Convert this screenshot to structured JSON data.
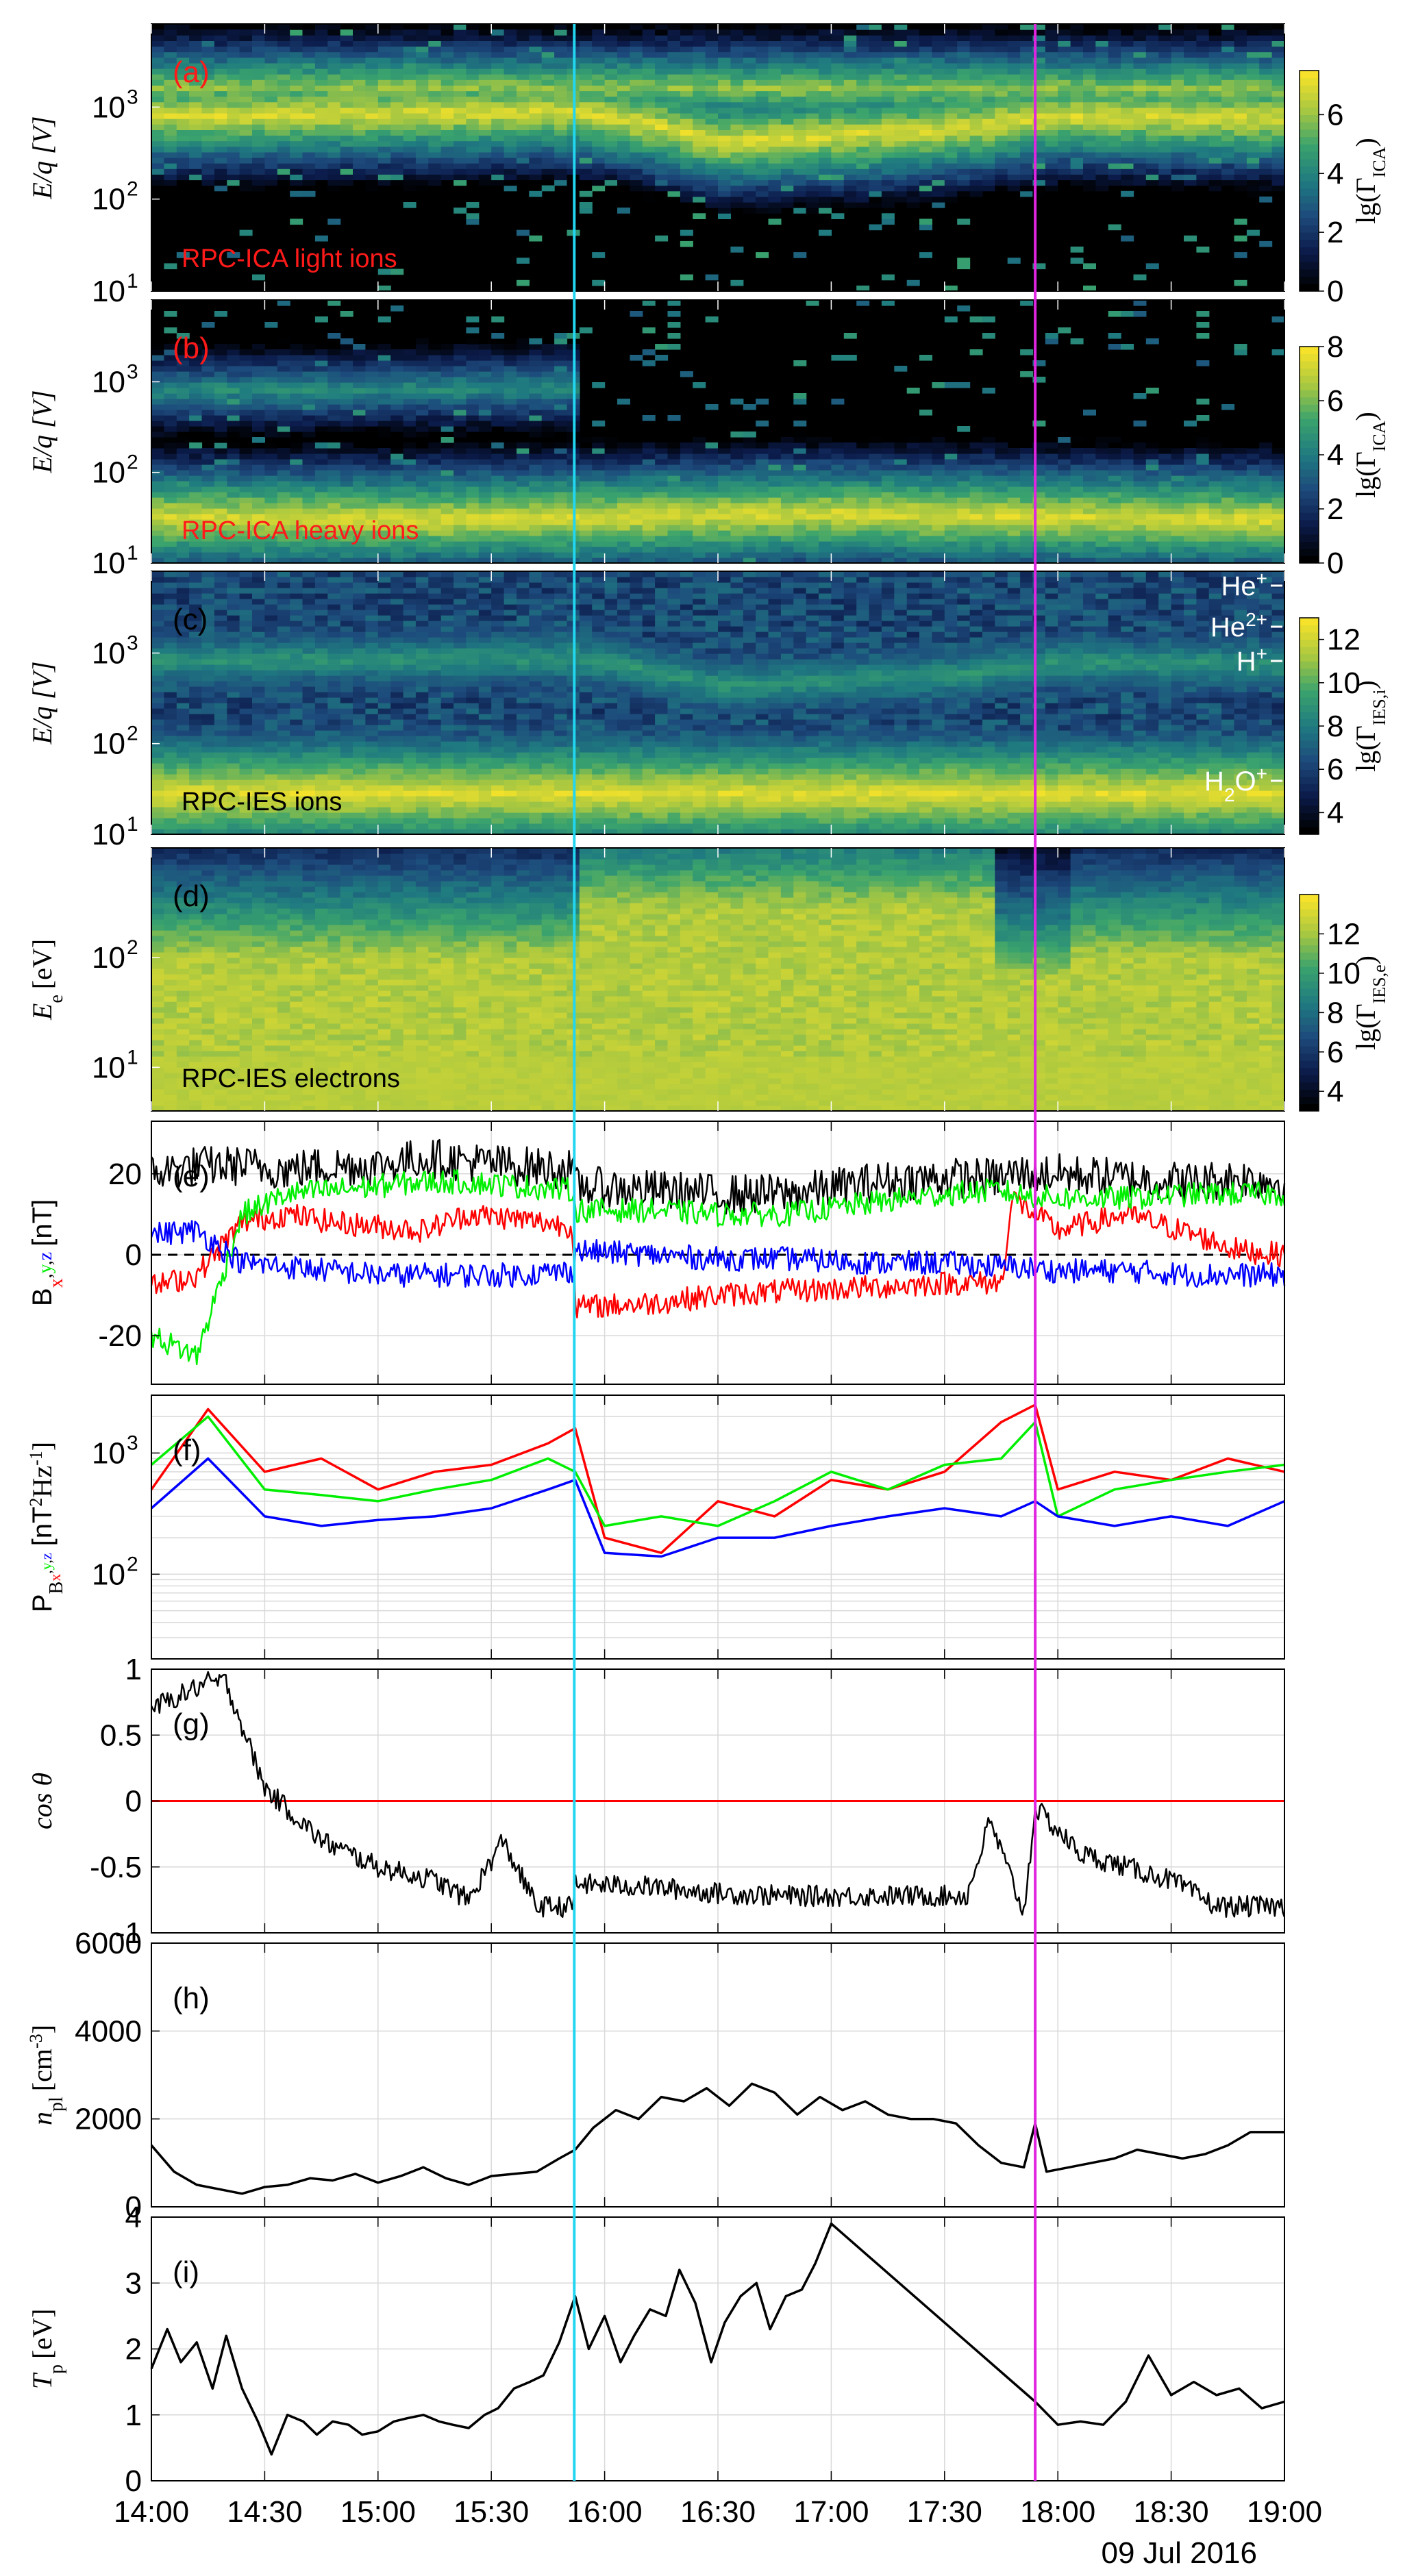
{
  "figure": {
    "date": "09 Jul 2016",
    "time_ticks": [
      "14:00",
      "14:30",
      "15:00",
      "15:30",
      "16:00",
      "16:30",
      "17:00",
      "17:30",
      "18:00",
      "18:30",
      "19:00"
    ],
    "time_range": [
      14.0,
      19.0
    ],
    "markers": [
      {
        "name": "cyan-marker",
        "time": 15.866,
        "color": "#22d6f0"
      },
      {
        "name": "magenta-marker",
        "time": 17.9,
        "color": "#e024e0"
      }
    ]
  },
  "colors": {
    "bx": "#ff0000",
    "by": "#00ee00",
    "bz": "#0000ff",
    "btot": "#000000",
    "zero_line": "#ff0000",
    "cmap": [
      "#000000",
      "#0b1b4a",
      "#1d4a7c",
      "#1f7b80",
      "#3aa36d",
      "#a9c840",
      "#f6e22a"
    ]
  },
  "chart_data": [
    {
      "type": "heatmap",
      "panel": "a",
      "letter": "(a)",
      "label": "RPC-ICA light ions",
      "ylabel": "E/q [V]",
      "yscale": "log",
      "ylim": [
        10,
        8000
      ],
      "y_ticks": [
        "10",
        "10",
        "10"
      ],
      "y_tick_exp": [
        "1",
        "2",
        "3"
      ],
      "colorbar": {
        "label": "lg(Γ",
        "sub": "ICA",
        "close": ")",
        "ticks": [
          "0",
          "2",
          "4",
          "6"
        ],
        "range": [
          0,
          7.5
        ]
      },
      "bands": [
        {
          "t": [
            14.0,
            15.87,
            16.5,
            17.5,
            18.0,
            19.0
          ],
          "e": [
            800,
            900,
            420,
            560,
            800,
            750
          ],
          "level": 7
        },
        {
          "t": [
            14.0,
            15.87,
            17.5,
            18.0,
            19.0
          ],
          "e": [
            1650,
            1650,
            1600,
            1600,
            1550
          ],
          "level": 6
        }
      ]
    },
    {
      "type": "heatmap",
      "panel": "b",
      "letter": "(b)",
      "label": "RPC-ICA heavy ions",
      "ylabel": "E/q [V]",
      "yscale": "log",
      "ylim": [
        10,
        8000
      ],
      "y_ticks": [
        "10",
        "10",
        "10"
      ],
      "y_tick_exp": [
        "1",
        "2",
        "3"
      ],
      "colorbar": {
        "label": "lg(Γ",
        "sub": "ICA",
        "close": ")",
        "ticks": [
          "0",
          "2",
          "4",
          "6",
          "8"
        ],
        "range": [
          0,
          8
        ]
      },
      "bands": [
        {
          "t": [
            14.0,
            15.0,
            16.0,
            17.0,
            18.0,
            19.0
          ],
          "e": [
            32,
            30,
            32,
            35,
            32,
            30
          ],
          "level": 7.5
        },
        {
          "t": [
            14.0,
            15.87
          ],
          "e": [
            780,
            880
          ],
          "level": 4.5
        }
      ]
    },
    {
      "type": "heatmap",
      "panel": "c",
      "letter": "(c)",
      "label": "RPC-IES ions",
      "ylabel": "E/q [V]",
      "yscale": "log",
      "ylim": [
        10,
        8000
      ],
      "y_ticks": [
        "10",
        "10",
        "10"
      ],
      "y_tick_exp": [
        "1",
        "2",
        "3"
      ],
      "colorbar": {
        "label": "lg(Γ",
        "sub": "IES,i",
        "close": ")",
        "ticks": [
          "4",
          "6",
          "8",
          "10",
          "12"
        ],
        "range": [
          3,
          13
        ]
      },
      "species": [
        {
          "base": "He",
          "sup": "+"
        },
        {
          "base": "He",
          "sup": "2+"
        },
        {
          "base": "H",
          "sup": "+"
        },
        {
          "base": "H",
          "sub": "2",
          "tail": "O",
          "sup": "+"
        }
      ],
      "bands": [
        {
          "t": [
            14.0,
            15.87,
            16.5,
            17.5,
            18.0,
            19.0
          ],
          "e": [
            820,
            880,
            430,
            560,
            800,
            760
          ],
          "level": 9
        },
        {
          "t": [
            14.0,
            19.0
          ],
          "e": [
            28,
            28
          ],
          "level": 12.5
        }
      ]
    },
    {
      "type": "heatmap",
      "panel": "d",
      "letter": "(d)",
      "label": "RPC-IES electrons",
      "ylabel": "E",
      "ylabel_sub": "e",
      "ylabel_unit": "[eV]",
      "yscale": "log",
      "ylim": [
        4,
        1000
      ],
      "y_ticks": [
        "10",
        "10"
      ],
      "y_tick_exp": [
        "1",
        "2"
      ],
      "colorbar": {
        "label": "lg(Γ",
        "sub": "IES,e",
        "close": ")",
        "ticks": [
          "4",
          "6",
          "8",
          "10",
          "12"
        ],
        "range": [
          3,
          14
        ]
      }
    },
    {
      "type": "line",
      "panel": "e",
      "letter": "(e)",
      "ylabel": "B",
      "ylabel_sub": "x,y,z",
      "ylabel_unit": "[nT]",
      "ylim": [
        -32,
        33
      ],
      "y_ticks": [
        "20",
        "0",
        "-20"
      ],
      "x": [
        14.0,
        14.2,
        14.4,
        14.6,
        14.8,
        15.0,
        15.2,
        15.4,
        15.6,
        15.86,
        15.87,
        16.2,
        16.5,
        16.8,
        17.2,
        17.5,
        17.75,
        17.8,
        18.0,
        18.3,
        18.6,
        18.8,
        19.0
      ],
      "series": [
        {
          "name": "|B|",
          "color": "#000000",
          "values": [
            20,
            22,
            22,
            21,
            22,
            22,
            24,
            23,
            22,
            21,
            17,
            16,
            15,
            15,
            18,
            19,
            19,
            20,
            20,
            19,
            18,
            19,
            18
          ]
        },
        {
          "name": "Bx",
          "color": "#ff0000",
          "values": [
            -8,
            -5,
            8,
            10,
            8,
            7,
            6,
            10,
            9,
            7,
            -13,
            -12,
            -10,
            -9,
            -8,
            -7,
            -7,
            14,
            6,
            10,
            5,
            1,
            0
          ]
        },
        {
          "name": "By",
          "color": "#00ee00",
          "values": [
            -20,
            -25,
            10,
            15,
            16,
            17,
            18,
            18,
            17,
            16,
            11,
            11,
            10,
            10,
            13,
            15,
            16,
            15,
            14,
            14,
            15,
            15,
            15
          ]
        },
        {
          "name": "Bz",
          "color": "#0000ff",
          "values": [
            5,
            6,
            -2,
            -3,
            -4,
            -5,
            -5,
            -5,
            -5,
            -4,
            1,
            0,
            -1,
            -1,
            -2,
            -2,
            -3,
            -3,
            -4,
            -4,
            -5,
            -5,
            -5
          ]
        }
      ]
    },
    {
      "type": "line",
      "panel": "f",
      "letter": "(f)",
      "ylabel": "P",
      "ylabel_sub": "B",
      "ylabel_subsub": "x,y,z",
      "ylabel_unit": "[nT",
      "ylabel_unit2": "Hz",
      "ylabel_close": "]",
      "yscale": "log",
      "ylim": [
        20,
        3000
      ],
      "y_ticks": [
        "10",
        "10"
      ],
      "y_tick_exp": [
        "2",
        "3"
      ],
      "x": [
        14.0,
        14.25,
        14.5,
        14.75,
        15.0,
        15.25,
        15.5,
        15.75,
        15.87,
        16.0,
        16.25,
        16.5,
        16.75,
        17.0,
        17.25,
        17.5,
        17.75,
        17.9,
        18.0,
        18.25,
        18.5,
        18.75,
        19.0
      ],
      "series": [
        {
          "name": "Bx",
          "color": "#ff0000",
          "values": [
            500,
            2300,
            700,
            900,
            500,
            700,
            800,
            1200,
            1600,
            200,
            150,
            400,
            300,
            600,
            500,
            700,
            1800,
            2500,
            500,
            700,
            600,
            900,
            700
          ]
        },
        {
          "name": "By",
          "color": "#00ee00",
          "values": [
            800,
            2000,
            500,
            450,
            400,
            500,
            600,
            900,
            700,
            250,
            300,
            250,
            400,
            700,
            500,
            800,
            900,
            1800,
            300,
            500,
            600,
            700,
            800
          ]
        },
        {
          "name": "Bz",
          "color": "#0000ff",
          "values": [
            350,
            900,
            300,
            250,
            280,
            300,
            350,
            500,
            600,
            150,
            140,
            200,
            200,
            250,
            300,
            350,
            300,
            400,
            300,
            250,
            300,
            250,
            400
          ]
        }
      ]
    },
    {
      "type": "line",
      "panel": "g",
      "letter": "(g)",
      "ylabel": "cos θ",
      "ylim": [
        -1,
        1
      ],
      "y_ticks": [
        "1",
        "0.5",
        "0",
        "-0.5",
        "-1"
      ],
      "x": [
        14.0,
        14.25,
        14.33,
        14.5,
        14.75,
        15.0,
        15.25,
        15.4,
        15.55,
        15.7,
        15.86,
        15.87,
        16.2,
        16.5,
        16.8,
        17.1,
        17.4,
        17.6,
        17.7,
        17.85,
        17.9,
        18.1,
        18.3,
        18.5,
        18.7,
        19.0
      ],
      "series": [
        {
          "name": "cos θ",
          "color": "#000000",
          "values": [
            0.7,
            0.9,
            0.9,
            0.1,
            -0.3,
            -0.5,
            -0.6,
            -0.75,
            -0.3,
            -0.8,
            -0.8,
            -0.63,
            -0.65,
            -0.7,
            -0.72,
            -0.72,
            -0.72,
            -0.72,
            -0.15,
            -0.85,
            -0.05,
            -0.4,
            -0.5,
            -0.6,
            -0.8,
            -0.8
          ]
        }
      ],
      "reference": {
        "y": 0,
        "color": "#ff0000"
      }
    },
    {
      "type": "line",
      "panel": "h",
      "letter": "(h)",
      "ylabel": "n",
      "ylabel_sub": "pl",
      "ylabel_unit": "[cm",
      "ylabel_exp": "-3",
      "ylabel_close": "]",
      "ylim": [
        0,
        6000
      ],
      "y_ticks": [
        "6000",
        "4000",
        "2000",
        "0"
      ],
      "x": [
        14.0,
        14.1,
        14.2,
        14.3,
        14.4,
        14.5,
        14.6,
        14.7,
        14.8,
        14.9,
        15.0,
        15.1,
        15.2,
        15.3,
        15.4,
        15.5,
        15.6,
        15.7,
        15.8,
        15.87,
        15.95,
        16.05,
        16.15,
        16.25,
        16.35,
        16.45,
        16.55,
        16.65,
        16.75,
        16.85,
        16.95,
        17.05,
        17.15,
        17.25,
        17.35,
        17.45,
        17.55,
        17.65,
        17.75,
        17.85,
        17.9,
        17.95,
        18.05,
        18.15,
        18.25,
        18.35,
        18.45,
        18.55,
        18.65,
        18.75,
        18.85,
        19.0
      ],
      "series": [
        {
          "name": "n_pl",
          "color": "#000000",
          "values": [
            1400,
            800,
            500,
            400,
            300,
            450,
            500,
            650,
            600,
            750,
            550,
            700,
            900,
            650,
            500,
            700,
            750,
            800,
            1100,
            1300,
            1800,
            2200,
            2000,
            2500,
            2400,
            2700,
            2300,
            2800,
            2600,
            2100,
            2500,
            2200,
            2400,
            2100,
            2000,
            2000,
            1900,
            1400,
            1000,
            900,
            1900,
            800,
            900,
            1000,
            1100,
            1300,
            1200,
            1100,
            1200,
            1400,
            1700,
            1700
          ]
        }
      ]
    },
    {
      "type": "line",
      "panel": "i",
      "letter": "(i)",
      "ylabel": "T",
      "ylabel_sub": "p",
      "ylabel_unit": "[eV]",
      "ylim": [
        0,
        4
      ],
      "y_ticks": [
        "4",
        "3",
        "2",
        "1",
        "0"
      ],
      "x": [
        14.0,
        14.07,
        14.13,
        14.2,
        14.27,
        14.33,
        14.4,
        14.47,
        14.53,
        14.6,
        14.67,
        14.73,
        14.8,
        14.87,
        14.93,
        15.0,
        15.07,
        15.13,
        15.2,
        15.27,
        15.33,
        15.4,
        15.47,
        15.53,
        15.6,
        15.67,
        15.73,
        15.8,
        15.87,
        15.93,
        16.0,
        16.07,
        16.13,
        16.2,
        16.27,
        16.33,
        16.4,
        16.47,
        16.53,
        16.6,
        16.67,
        16.73,
        16.8,
        16.87,
        16.93,
        17.0,
        17.9,
        18.0,
        18.1,
        18.2,
        18.3,
        18.4,
        18.5,
        18.6,
        18.7,
        18.8,
        18.9,
        19.0
      ],
      "series": [
        {
          "name": "T_p",
          "color": "#000000",
          "values": [
            1.7,
            2.3,
            1.8,
            2.1,
            1.4,
            2.2,
            1.4,
            0.9,
            0.4,
            1.0,
            0.9,
            0.7,
            0.9,
            0.85,
            0.7,
            0.75,
            0.9,
            0.95,
            1.0,
            0.9,
            0.85,
            0.8,
            1.0,
            1.1,
            1.4,
            1.5,
            1.6,
            2.1,
            2.8,
            2.0,
            2.5,
            1.8,
            2.2,
            2.6,
            2.5,
            3.2,
            2.7,
            1.8,
            2.4,
            2.8,
            3.0,
            2.3,
            2.8,
            2.9,
            3.3,
            3.9,
            1.2,
            0.85,
            0.9,
            0.85,
            1.2,
            1.9,
            1.3,
            1.5,
            1.3,
            1.4,
            1.1,
            1.2
          ]
        }
      ]
    }
  ]
}
